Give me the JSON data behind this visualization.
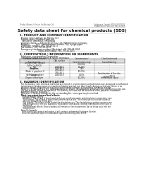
{
  "title": "Safety data sheet for chemical products (SDS)",
  "header_left": "Product Name: Lithium Ion Battery Cell",
  "header_right_line1": "Substance Control: SDS-049-00010",
  "header_right_line2": "Established / Revision: Dec.1.2019",
  "section1_title": "1. PRODUCT AND COMPANY IDENTIFICATION",
  "section1_items": [
    "  Product name: Lithium Ion Battery Cell",
    "  Product code: Cylindrical-type cell",
    "    INR18650J, INR18650J, INR18650A",
    "  Company name:     Sanyo Electric Co., Ltd., Mobile Energy Company",
    "  Address:          2001  Kamikosakami, Sumoto-City, Hyogo, Japan",
    "  Telephone number: +81-799-26-4111",
    "  Fax number: +81-799-26-4101",
    "  Emergency telephone number (Weekday) +81-799-26-3662",
    "                              (Night and holiday) +81-799-26-4101"
  ],
  "section2_title": "2. COMPOSITION / INFORMATION ON INGREDIENTS",
  "section2_subtitle": "  Substance or preparation: Preparation",
  "section2_sub2": "  Information about the chemical nature of product",
  "table_headers": [
    "Common chemical name /\nSpecies name",
    "CAS number",
    "Concentration /\nConcentration range",
    "Classification and\nhazard labeling"
  ],
  "table_rows": [
    [
      "Lithium oxide (anode)\n(LiMn-Co-Ni)O2)",
      "-",
      "(30-60%)",
      "-"
    ],
    [
      "Iron",
      "7439-89-6",
      "15-25%",
      "-"
    ],
    [
      "Aluminum",
      "7429-90-5",
      "2-8%",
      "-"
    ],
    [
      "Graphite\n(Make in graphite-1)\n(A/Mn-co graphite)",
      "7782-42-5\n7782-44-2",
      "10-25%",
      "-"
    ],
    [
      "Copper",
      "7440-50-8",
      "5-15%",
      "Sensitization of the skin\ngroup R43 2"
    ],
    [
      "Organic electrolyte",
      "-",
      "10-20%",
      "Inflammable liquid"
    ]
  ],
  "section3_title": "3. HAZARDS IDENTIFICATION",
  "section3_para1": "  For the battery cell, chemical materials are stored in a hermetically sealed metal case, designed to withstand",
  "section3_para2": "  temperatures and pressures encountered during normal use. As a result, during normal use, there is no",
  "section3_para3": "  physical danger of ignition or explosion and therefore danger of hazardous materials leakage.",
  "section3_para4": "  However, if exposed to a fire, added mechanical shocks, decomposed, writen-electric shocks may raise use.",
  "section3_para5": "  the gas release cannot be operated. The battery cell case will be breached of fire-patterns, hazardous",
  "section3_para6": "  materials may be released.",
  "section3_para7": "  Moreover, if heated strongly by the surrounding fire, some gas may be emitted.",
  "section3_bullet": "  Most important hazard and effects:",
  "section3_human": "    Human health effects:",
  "section3_lines": [
    "      Inhalation: The release of the electrolyte has an anesthesia action and stimulates in respiratory tract.",
    "      Skin contact: The release of the electrolyte stimulates a skin. The electrolyte skin contact causes a",
    "      sore and stimulation on the skin.",
    "      Eye contact: The release of the electrolyte stimulates eyes. The electrolyte eye contact causes a sore",
    "      and stimulation on the eye. Especially, a substance that causes a strong inflammation of the eyes is",
    "      contained.",
    "      Environmental effects: Since a battery cell remains in the environment, do not throw out it into the",
    "      environment."
  ],
  "section3_specific": "  Specific hazards:",
  "section3_spec_lines": [
    "    If the electrolyte contacts with water, it will generate detrimental hydrogen fluoride.",
    "    Since the seal-electrolyte is inflammable liquid, do not bring close to fire."
  ],
  "bg_color": "#ffffff",
  "text_color": "#111111",
  "gray_text": "#555555",
  "title_fontsize": 4.2,
  "header_fontsize": 1.8,
  "section_fontsize": 2.8,
  "body_fontsize": 2.0,
  "table_fontsize": 1.9
}
